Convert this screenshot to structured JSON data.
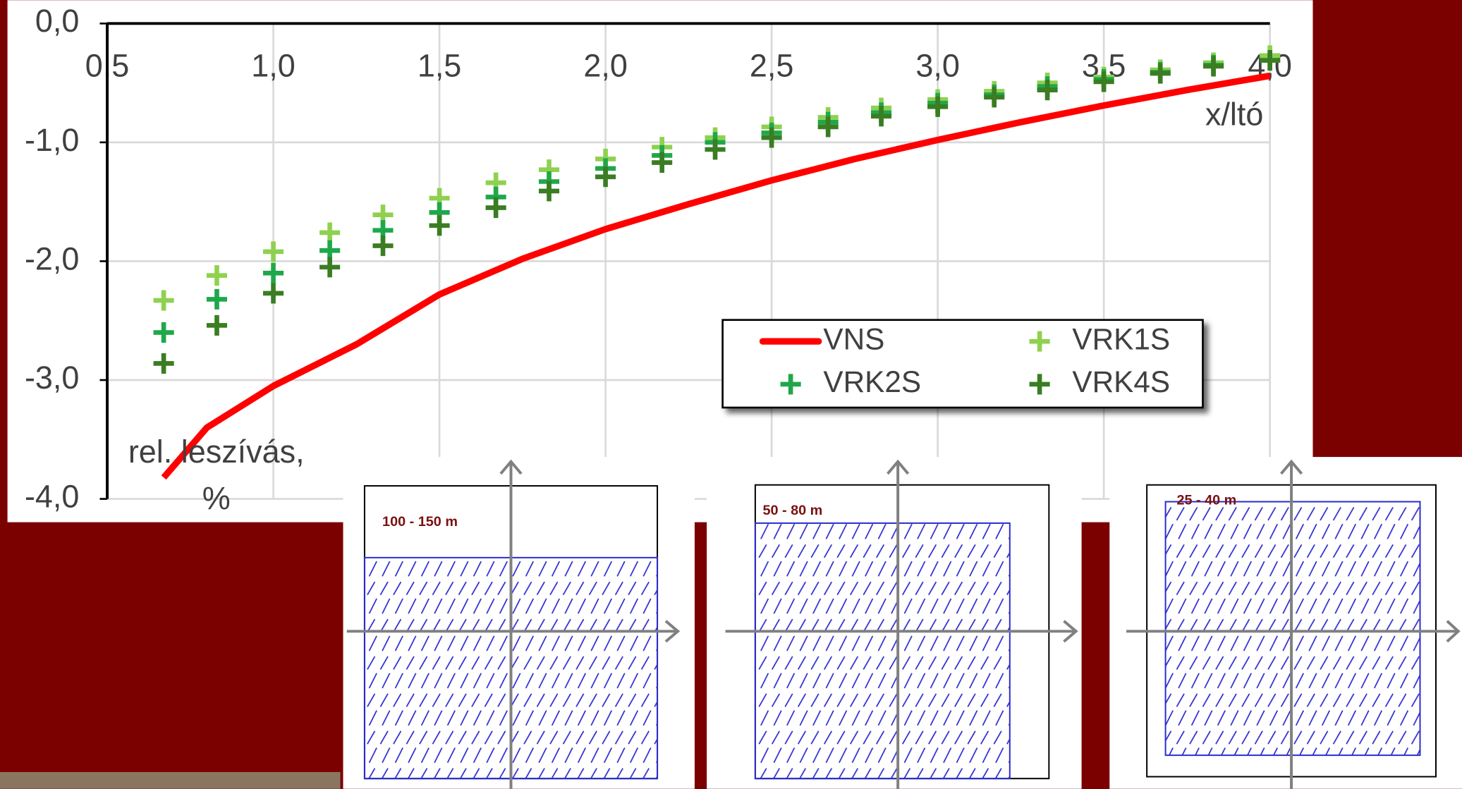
{
  "chart_data": {
    "type": "scatter",
    "x_label": "x/ltó",
    "y_label": [
      "rel. leszívás,",
      "%"
    ],
    "xlim": [
      0.5,
      4.0
    ],
    "xticks": [
      {
        "value": 0.5,
        "label": "0,5"
      },
      {
        "value": 1.0,
        "label": "1,0"
      },
      {
        "value": 1.5,
        "label": "1,5"
      },
      {
        "value": 2.0,
        "label": "2,0"
      },
      {
        "value": 2.5,
        "label": "2,5"
      },
      {
        "value": 3.0,
        "label": "3,0"
      },
      {
        "value": 3.5,
        "label": "3,5"
      },
      {
        "value": 4.0,
        "label": "4,0"
      }
    ],
    "ylim": [
      -4.0,
      0.0
    ],
    "yticks": [
      {
        "value": -4.0,
        "label": "-4,0"
      },
      {
        "value": -3.0,
        "label": "-3,0"
      },
      {
        "value": -2.0,
        "label": "-2,0"
      },
      {
        "value": -1.0,
        "label": "-1,0"
      },
      {
        "value": 0.0,
        "label": "0,0"
      }
    ],
    "grid": true,
    "series": [
      {
        "name": "VNS",
        "type": "line",
        "color": "#ff0000",
        "x": [
          0.67,
          0.8,
          1.0,
          1.25,
          1.5,
          1.75,
          2.0,
          2.25,
          2.5,
          2.75,
          3.0,
          3.25,
          3.5,
          3.75,
          4.0
        ],
        "values": [
          -3.82,
          -3.4,
          -3.05,
          -2.7,
          -2.28,
          -1.98,
          -1.73,
          -1.52,
          -1.32,
          -1.14,
          -0.98,
          -0.83,
          -0.69,
          -0.56,
          -0.44
        ]
      },
      {
        "name": "VRK1S",
        "type": "scatter",
        "color": "#8fd14f",
        "x": [
          0.67,
          0.83,
          1.0,
          1.17,
          1.33,
          1.5,
          1.67,
          1.83,
          2.0,
          2.17,
          2.33,
          2.5,
          2.67,
          2.83,
          3.0,
          3.17,
          3.33,
          3.5,
          3.67,
          3.83,
          4.0
        ],
        "values": [
          -2.33,
          -2.12,
          -1.92,
          -1.76,
          -1.61,
          -1.47,
          -1.34,
          -1.23,
          -1.14,
          -1.04,
          -0.96,
          -0.87,
          -0.79,
          -0.71,
          -0.64,
          -0.57,
          -0.5,
          -0.45,
          -0.39,
          -0.33,
          -0.27
        ]
      },
      {
        "name": "VRK2S",
        "type": "scatter",
        "color": "#1fa84a",
        "x": [
          0.67,
          0.83,
          1.0,
          1.17,
          1.33,
          1.5,
          1.67,
          1.83,
          2.0,
          2.17,
          2.33,
          2.5,
          2.67,
          2.83,
          3.0,
          3.17,
          3.33,
          3.5,
          3.67,
          3.83,
          4.0
        ],
        "values": [
          -2.6,
          -2.32,
          -2.1,
          -1.91,
          -1.74,
          -1.59,
          -1.46,
          -1.33,
          -1.22,
          -1.11,
          -1.0,
          -0.92,
          -0.83,
          -0.75,
          -0.67,
          -0.6,
          -0.53,
          -0.47,
          -0.41,
          -0.35,
          -0.31
        ]
      },
      {
        "name": "VRK4S",
        "type": "scatter",
        "color": "#3a7d22",
        "x": [
          0.67,
          0.83,
          1.0,
          1.17,
          1.33,
          1.5,
          1.67,
          1.83,
          2.0,
          2.17,
          2.33,
          2.5,
          2.67,
          2.83,
          3.0,
          3.17,
          3.33,
          3.5,
          3.67,
          3.83,
          4.0
        ],
        "values": [
          -2.86,
          -2.54,
          -2.27,
          -2.05,
          -1.87,
          -1.7,
          -1.55,
          -1.41,
          -1.29,
          -1.17,
          -1.06,
          -0.96,
          -0.87,
          -0.78,
          -0.7,
          -0.62,
          -0.56,
          -0.49,
          -0.42,
          -0.36,
          -0.31
        ]
      }
    ]
  },
  "diagrams": [
    {
      "label": "100 - 150 m"
    },
    {
      "label": "50 - 80 m"
    },
    {
      "label": "25 - 40 m"
    }
  ]
}
